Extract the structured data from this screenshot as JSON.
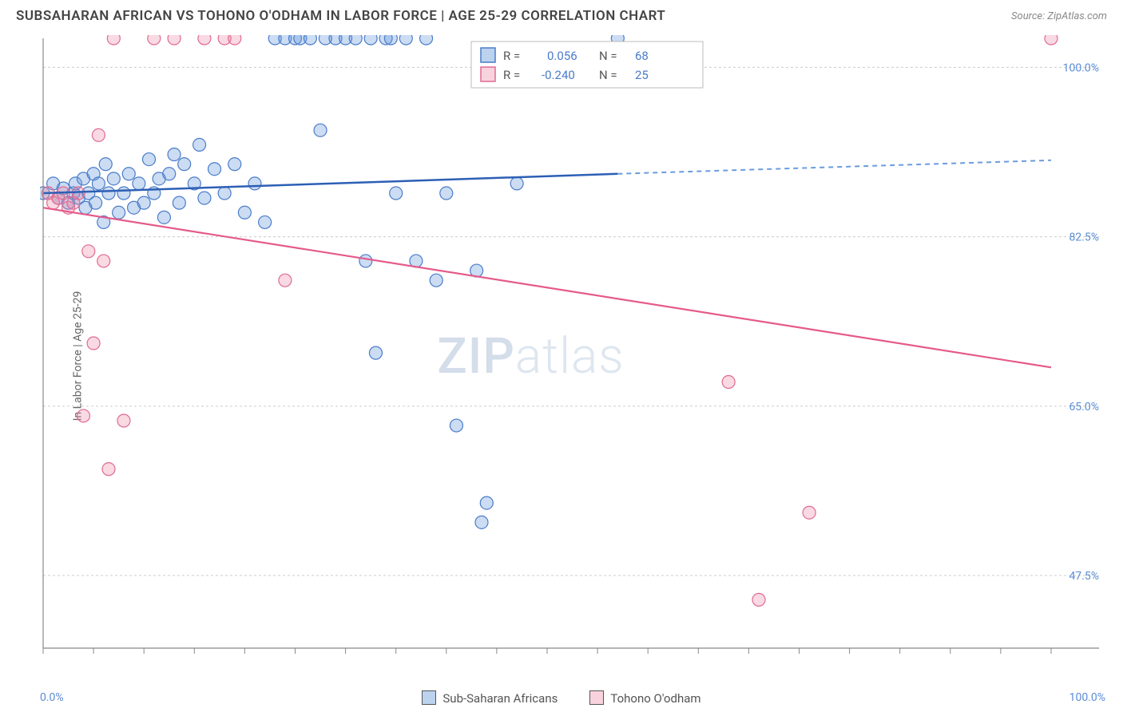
{
  "title": "SUBSAHARAN AFRICAN VS TOHONO O'ODHAM IN LABOR FORCE | AGE 25-29 CORRELATION CHART",
  "source": "Source: ZipAtlas.com",
  "y_axis_label": "In Labor Force | Age 25-29",
  "watermark": {
    "bold": "ZIP",
    "light": "atlas"
  },
  "chart": {
    "type": "scatter",
    "xlim": [
      0,
      100
    ],
    "ylim": [
      40,
      103
    ],
    "y_ticks": [
      47.5,
      65.0,
      82.5,
      100.0
    ],
    "y_tick_labels": [
      "47.5%",
      "65.0%",
      "82.5%",
      "100.0%"
    ],
    "x_tick_labels": [
      "0.0%",
      "100.0%"
    ],
    "x_minor_ticks": [
      0,
      5,
      10,
      15,
      20,
      25,
      30,
      35,
      40,
      45,
      50,
      55,
      60,
      65,
      70,
      75,
      80,
      85,
      90,
      95,
      100
    ],
    "background_color": "#ffffff",
    "grid_color": "#cccccc",
    "marker_radius": 8,
    "series": [
      {
        "name": "Sub-Saharan Africans",
        "color_fill": "rgba(106,156,220,0.35)",
        "color_stroke": "#4a7cc9",
        "r_value": "0.056",
        "n_value": "68",
        "trend": {
          "x1": 0,
          "y1": 87.0,
          "x2": 57,
          "y2": 89.0,
          "x2_dash": 100,
          "y2_dash": 90.4
        },
        "points": [
          [
            0,
            87
          ],
          [
            1,
            88
          ],
          [
            1.5,
            86.5
          ],
          [
            2,
            87.5
          ],
          [
            2.5,
            86
          ],
          [
            3,
            87
          ],
          [
            3.2,
            88
          ],
          [
            3.5,
            86.5
          ],
          [
            4,
            88.5
          ],
          [
            4.2,
            85.5
          ],
          [
            4.5,
            87
          ],
          [
            5,
            89
          ],
          [
            5.2,
            86
          ],
          [
            5.5,
            88
          ],
          [
            6,
            84
          ],
          [
            6.2,
            90
          ],
          [
            6.5,
            87
          ],
          [
            7,
            88.5
          ],
          [
            7.5,
            85
          ],
          [
            8,
            87
          ],
          [
            8.5,
            89
          ],
          [
            9,
            85.5
          ],
          [
            9.5,
            88
          ],
          [
            10,
            86
          ],
          [
            10.5,
            90.5
          ],
          [
            11,
            87
          ],
          [
            11.5,
            88.5
          ],
          [
            12,
            84.5
          ],
          [
            12.5,
            89
          ],
          [
            13,
            91
          ],
          [
            13.5,
            86
          ],
          [
            14,
            90
          ],
          [
            15,
            88
          ],
          [
            15.5,
            92
          ],
          [
            16,
            86.5
          ],
          [
            17,
            89.5
          ],
          [
            18,
            87
          ],
          [
            19,
            90
          ],
          [
            20,
            85
          ],
          [
            21,
            88
          ],
          [
            22,
            84
          ],
          [
            23,
            103
          ],
          [
            24,
            103
          ],
          [
            25,
            103
          ],
          [
            25.5,
            103
          ],
          [
            26.5,
            103
          ],
          [
            27.5,
            93.5
          ],
          [
            28,
            103
          ],
          [
            29,
            103
          ],
          [
            30,
            103
          ],
          [
            31,
            103
          ],
          [
            32,
            80
          ],
          [
            32.5,
            103
          ],
          [
            33,
            70.5
          ],
          [
            34,
            103
          ],
          [
            34.5,
            103
          ],
          [
            35,
            87
          ],
          [
            36,
            103
          ],
          [
            37,
            80
          ],
          [
            38,
            103
          ],
          [
            39,
            78
          ],
          [
            40,
            87
          ],
          [
            41,
            63
          ],
          [
            43,
            79
          ],
          [
            43.5,
            53
          ],
          [
            44,
            55
          ],
          [
            47,
            88
          ],
          [
            57,
            103
          ]
        ]
      },
      {
        "name": "Tohono O'odham",
        "color_fill": "rgba(235,130,160,0.30)",
        "color_stroke": "#e06a94",
        "r_value": "-0.240",
        "n_value": "25",
        "trend": {
          "x1": 0,
          "y1": 85.5,
          "x2": 100,
          "y2": 69.0
        },
        "points": [
          [
            0.5,
            87
          ],
          [
            1,
            86
          ],
          [
            1.5,
            86.5
          ],
          [
            2,
            87
          ],
          [
            2.5,
            85.5
          ],
          [
            3,
            86
          ],
          [
            3.5,
            87
          ],
          [
            4,
            64
          ],
          [
            4.5,
            81
          ],
          [
            5,
            71.5
          ],
          [
            5.5,
            93
          ],
          [
            6,
            80
          ],
          [
            6.5,
            58.5
          ],
          [
            7,
            103
          ],
          [
            8,
            63.5
          ],
          [
            11,
            103
          ],
          [
            13,
            103
          ],
          [
            16,
            103
          ],
          [
            18,
            103
          ],
          [
            19,
            103
          ],
          [
            24,
            78
          ],
          [
            68,
            67.5
          ],
          [
            71,
            45
          ],
          [
            76,
            54
          ],
          [
            100,
            103
          ]
        ]
      }
    ],
    "legend_box": {
      "r_label": "R =",
      "n_label": "N ="
    },
    "bottom_legend": {
      "series1": "Sub-Saharan Africans",
      "series2": "Tohono O'odham"
    }
  }
}
